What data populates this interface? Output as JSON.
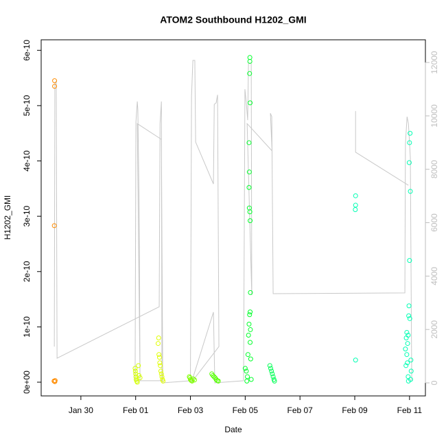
{
  "chart_data": {
    "type": "scatter",
    "title": "ATOM2 Southbound H1202_GMI",
    "x_label": "Date",
    "y_label": "H1202_GMI",
    "xlim": [
      28.55,
      42.58
    ],
    "xticks": [
      {
        "value": 30,
        "label": "Jan 30"
      },
      {
        "value": 32,
        "label": "Feb 01"
      },
      {
        "value": 34,
        "label": "Feb 03"
      },
      {
        "value": 36,
        "label": "Feb 05"
      },
      {
        "value": 38,
        "label": "Feb 07"
      },
      {
        "value": 40,
        "label": "Feb 09"
      },
      {
        "value": 42,
        "label": "Feb 11"
      }
    ],
    "ylim": [
      -2.48e-11,
      6.19e-10
    ],
    "yticks": [
      {
        "value": 0,
        "label": "0e+00"
      },
      1e-10,
      2e-10,
      3e-10,
      4e-10,
      5e-10,
      6e-10
    ],
    "y2lim": [
      -488,
      12850
    ],
    "y2ticks": [
      0,
      2000,
      4000,
      6000,
      8000,
      10000,
      12000
    ],
    "y2_color": "#bebebe",
    "series": [
      {
        "color": "#ff8c00",
        "x": [
          29.04,
          29.04,
          29.03,
          29.02,
          29.05,
          29.06
        ],
        "values": [
          5.45e-10,
          5.35e-10,
          2.83e-10,
          2e-12,
          1e-12,
          3e-12
        ]
      },
      {
        "color": "#d4ff00",
        "x": [
          31.98,
          31.99,
          32.0,
          32.01,
          32.02,
          32.04,
          32.06,
          32.1,
          32.12,
          32.16
        ],
        "values": [
          2.5e-11,
          2e-11,
          1.5e-11,
          1e-11,
          5e-12,
          2e-12,
          0,
          3e-11,
          1.2e-11,
          8e-12
        ]
      },
      {
        "color": "#e0ff00",
        "x": [
          32.82,
          32.84,
          32.85,
          32.87,
          32.88,
          32.9,
          32.92,
          32.94,
          32.96,
          32.98,
          33.0
        ],
        "values": [
          7e-11,
          8e-11,
          5e-11,
          4.5e-11,
          3.5e-11,
          3e-11,
          2e-11,
          1.5e-11,
          1e-11,
          5e-12,
          2e-12
        ]
      },
      {
        "color": "#7fff00",
        "x": [
          33.96,
          33.98,
          34.0,
          34.03,
          34.06,
          34.1,
          34.15
        ],
        "values": [
          1e-11,
          8e-12,
          5e-12,
          3e-12,
          2e-12,
          6e-12,
          4e-12
        ]
      },
      {
        "color": "#55ff00",
        "x": [
          34.78,
          34.82,
          34.86,
          34.9,
          34.94,
          34.98,
          35.02
        ],
        "values": [
          1.5e-11,
          1.2e-11,
          1e-11,
          8e-12,
          5e-12,
          3e-12,
          2e-12
        ]
      },
      {
        "color": "#00ff2a",
        "x": [
          36.17,
          36.17,
          36.16,
          36.18,
          36.14,
          36.15,
          36.14,
          36.15,
          36.17,
          36.18,
          36.19,
          36.18,
          36.16,
          36.14,
          36.19,
          36.12,
          36.18,
          36.1,
          36.2,
          36.0,
          36.04,
          36.08,
          36.22,
          36.06
        ],
        "values": [
          5.87e-10,
          5.8e-10,
          5.58e-10,
          5.05e-10,
          4.33e-10,
          3.8e-10,
          3.52e-10,
          3.15e-10,
          3.08e-10,
          2.92e-10,
          1.62e-10,
          1.27e-10,
          1.22e-10,
          1.05e-10,
          9.5e-11,
          8.5e-11,
          7.2e-11,
          5e-11,
          4.2e-11,
          2.5e-11,
          2e-11,
          1e-11,
          5e-12,
          2e-12
        ]
      },
      {
        "color": "#00ff55",
        "x": [
          36.9,
          36.93,
          36.96,
          36.99,
          37.02,
          37.05,
          37.07
        ],
        "values": [
          3e-11,
          2.5e-11,
          2e-11,
          1.5e-11,
          1e-11,
          5e-12,
          2e-12
        ]
      },
      {
        "color": "#00ffb3",
        "x": [
          40.03,
          40.03,
          40.02,
          40.03,
          42.02,
          42.0,
          41.99,
          42.03,
          42.0,
          41.98,
          41.97,
          42.01,
          41.9,
          41.95,
          41.88,
          41.93,
          41.85,
          41.9,
          42.05,
          41.92,
          41.87,
          42.06,
          41.95,
          42.04,
          41.96
        ],
        "values": [
          3.37e-10,
          3.2e-10,
          3.12e-10,
          4e-11,
          4.5e-10,
          4.33e-10,
          3.97e-10,
          3.45e-10,
          2.2e-10,
          1.38e-10,
          1.2e-10,
          1.15e-10,
          9e-11,
          8.5e-11,
          8e-11,
          7e-11,
          6e-11,
          5e-11,
          4e-11,
          3.5e-11,
          3e-11,
          2e-11,
          1e-11,
          5e-12,
          2e-12
        ]
      },
      {
        "type": "line",
        "axis": "y2",
        "color": "#c8c8c8",
        "x": [
          29.03,
          29.05,
          29.1,
          29.13,
          32.86,
          32.89,
          32.94,
          32.96,
          31.98,
          32.01,
          32.06,
          32.08,
          32.13,
          32.16,
          32.06,
          32.94,
          32.99,
          34.0,
          34.04,
          34.09,
          34.16,
          34.19,
          34.84,
          34.87,
          34.94,
          34.99,
          35.04,
          34.04,
          34.84,
          34.89,
          35.94,
          35.99,
          36.04,
          36.09,
          36.12,
          36.22,
          36.24,
          36.07,
          36.98,
          36.92,
          36.97,
          37.02,
          41.83,
          41.85,
          41.91,
          41.96,
          42.03,
          42.08,
          42.08,
          40.03,
          40.03,
          41.96
        ],
        "values": [
          1360,
          11200,
          11310,
          925,
          2850,
          9710,
          10540,
          80,
          80,
          9770,
          10540,
          10230,
          6370,
          80,
          9710,
          9120,
          0,
          80,
          10740,
          12080,
          12080,
          9020,
          7450,
          10430,
          10490,
          10790,
          1360,
          25,
          2650,
          0,
          80,
          11000,
          10490,
          9840,
          11980,
          11980,
          3290,
          9710,
          8690,
          10100,
          9970,
          3340,
          3370,
          8940,
          9970,
          9710,
          8430,
          80,
          null,
          10180,
          8640,
          7400
        ]
      }
    ]
  }
}
